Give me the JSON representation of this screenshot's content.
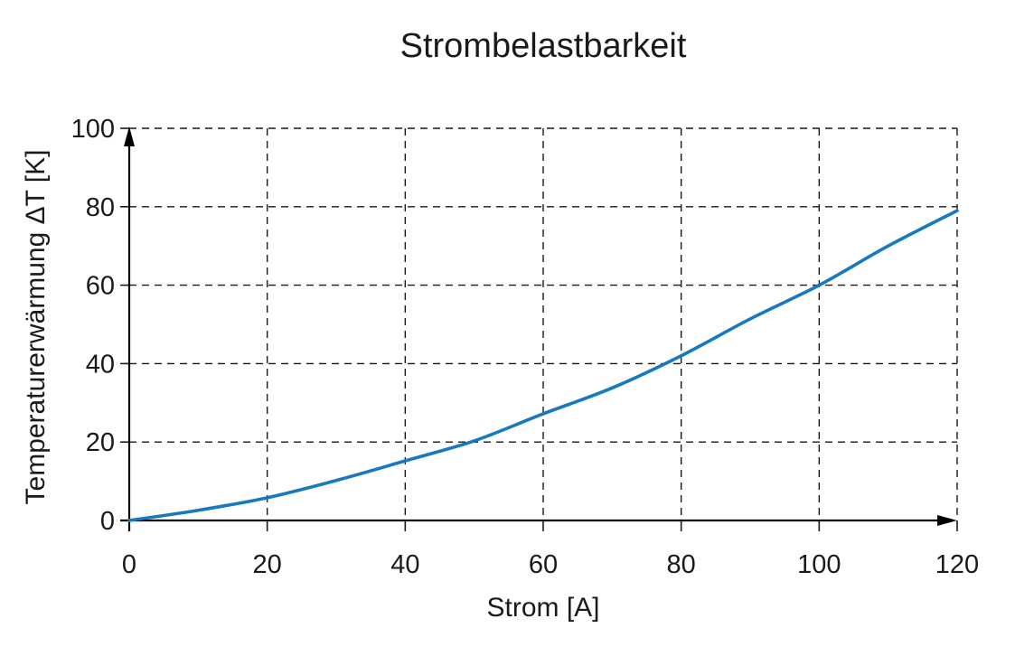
{
  "chart_data": {
    "type": "line",
    "title": "Strombelastbarkeit",
    "xlabel": "Strom [A]",
    "ylabel": "Temperaturerwärmung ΔT [K]",
    "xlim": [
      0,
      120
    ],
    "ylim": [
      0,
      100
    ],
    "xticks": [
      0,
      20,
      40,
      60,
      80,
      100,
      120
    ],
    "yticks": [
      0,
      20,
      40,
      60,
      80,
      100
    ],
    "grid": "dashed",
    "legend_position": "none",
    "axis_style": "arrows",
    "colors": {
      "line": "#1779be",
      "grid": "#1a1a1a",
      "axis": "#000000",
      "text": "#1a1a1a",
      "background": "#ffffff"
    },
    "series": [
      {
        "name": "Temperaturerwärmung ΔT",
        "x": [
          0,
          10,
          20,
          30,
          40,
          50,
          60,
          70,
          80,
          90,
          100,
          110,
          120
        ],
        "y": [
          0,
          2.6,
          5.8,
          10.2,
          15.2,
          20.3,
          27.2,
          33.8,
          42,
          51.4,
          60,
          70,
          79
        ]
      }
    ]
  }
}
